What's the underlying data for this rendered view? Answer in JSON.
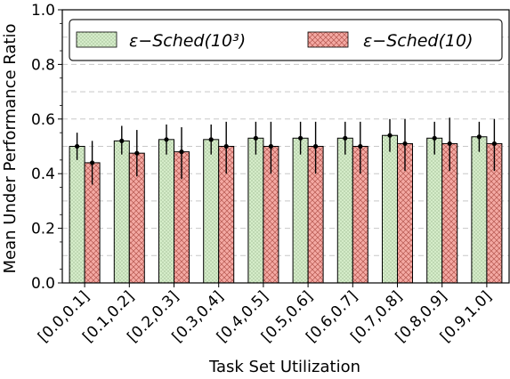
{
  "chart_data": {
    "type": "bar",
    "xlabel": "Task Set Utilization",
    "ylabel": "Mean Under Performance Ratio",
    "ylim": [
      0,
      1.0
    ],
    "yticks": [
      "0.0",
      "0.2",
      "0.4",
      "0.6",
      "0.8",
      "1.0"
    ],
    "grid": "dashed horizontal",
    "legend_placement": "top",
    "categories": [
      "[0.0,0.1]",
      "[0.1,0.2]",
      "[0.2,0.3]",
      "[0.3,0.4]",
      "[0.4,0.5]",
      "[0.5,0.6]",
      "[0.6,0.7]",
      "[0.7,0.8]",
      "[0.8,0.9]",
      "[0.9,1.0]"
    ],
    "series": [
      {
        "name": "ε−Sched(10³)",
        "color": "#d5ecc9",
        "hatch": "dots",
        "values": [
          0.5,
          0.52,
          0.525,
          0.525,
          0.53,
          0.53,
          0.53,
          0.54,
          0.53,
          0.535
        ],
        "err_low": [
          0.45,
          0.47,
          0.47,
          0.47,
          0.47,
          0.47,
          0.47,
          0.48,
          0.47,
          0.48
        ],
        "err_high": [
          0.55,
          0.575,
          0.58,
          0.58,
          0.59,
          0.59,
          0.59,
          0.6,
          0.59,
          0.59
        ]
      },
      {
        "name": "ε−Sched(10)",
        "color": "#f4a9a3",
        "hatch": "crosshatch",
        "values": [
          0.44,
          0.475,
          0.48,
          0.5,
          0.5,
          0.5,
          0.5,
          0.51,
          0.51,
          0.51
        ],
        "err_low": [
          0.36,
          0.39,
          0.38,
          0.4,
          0.4,
          0.4,
          0.4,
          0.41,
          0.41,
          0.41
        ],
        "err_high": [
          0.52,
          0.56,
          0.57,
          0.59,
          0.59,
          0.59,
          0.59,
          0.6,
          0.605,
          0.6
        ]
      }
    ]
  }
}
